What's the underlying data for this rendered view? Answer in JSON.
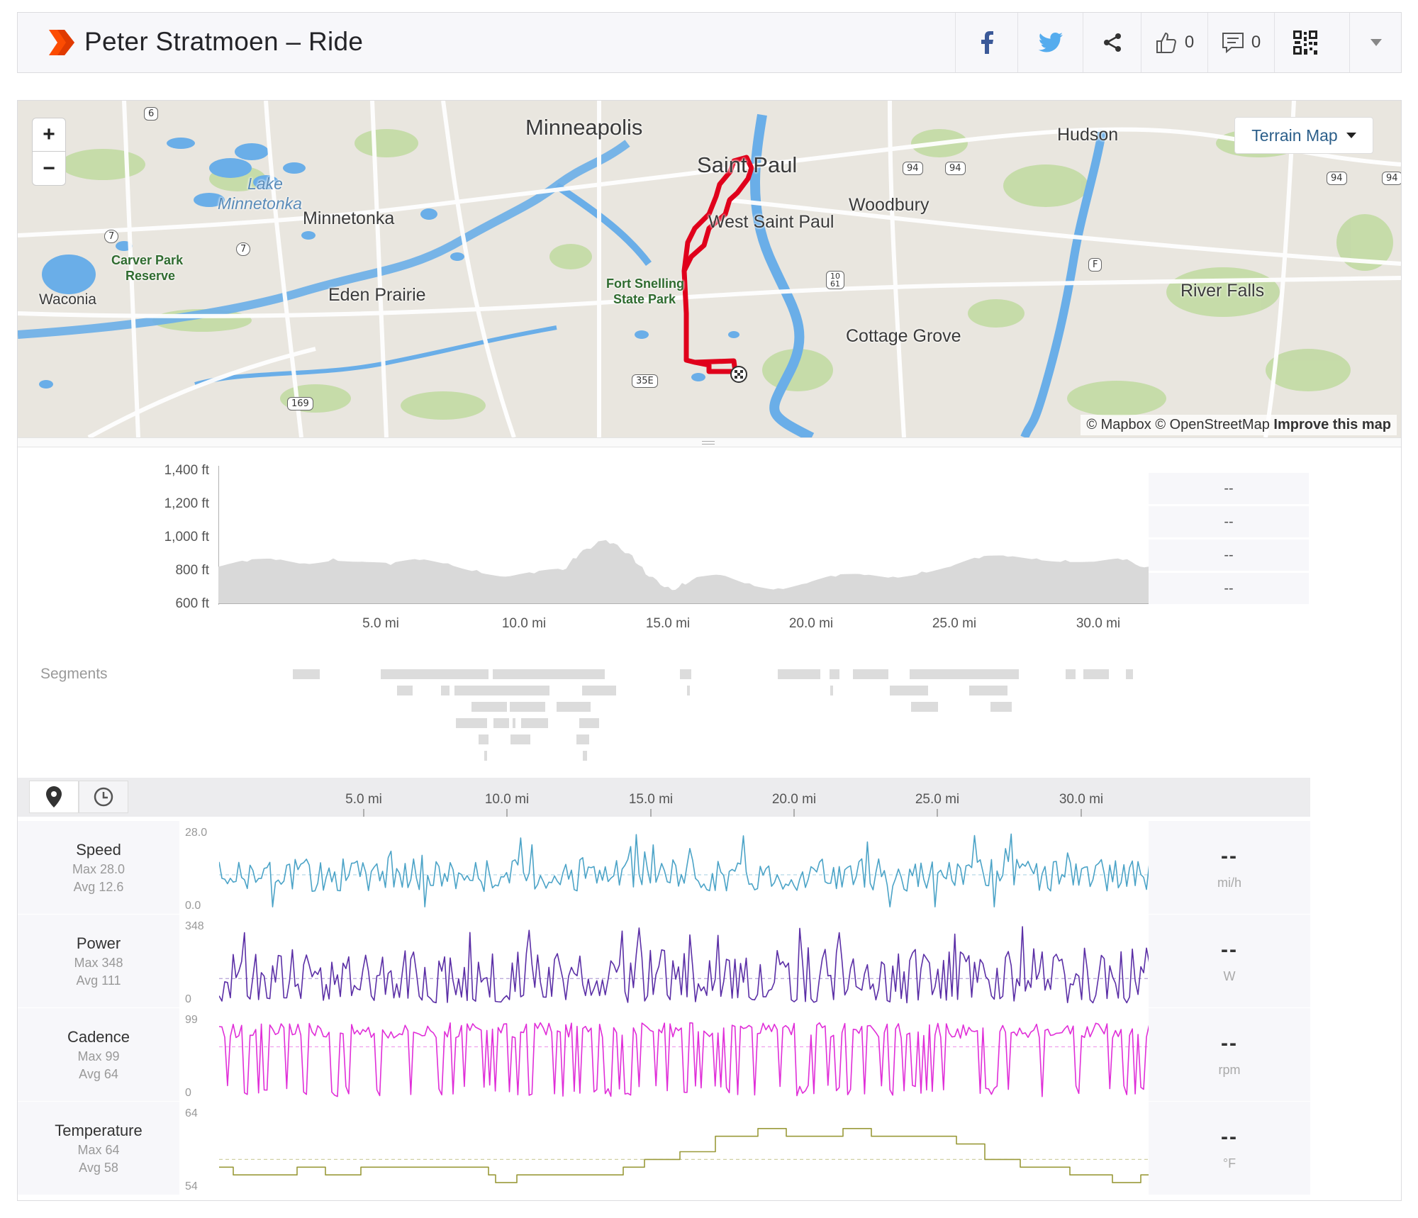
{
  "header": {
    "title": "Peter Stratmoen – Ride",
    "likes": "0",
    "comments": "0",
    "icons": [
      "strava-logo-icon",
      "facebook-icon",
      "twitter-icon",
      "share-icon",
      "thumbs-up-icon",
      "comment-icon",
      "qr-code-icon",
      "chevron-down-icon"
    ]
  },
  "map": {
    "zoom_in": "+",
    "zoom_out": "−",
    "type_selector": "Terrain Map",
    "attribution_a": "© Mapbox © OpenStreetMap",
    "attribution_b": "Improve this map",
    "labels": {
      "minneapolis": "Minneapolis",
      "saint_paul": "Saint Paul",
      "hudson": "Hudson",
      "woodbury": "Woodbury",
      "west_saint_paul": "West Saint Paul",
      "minnetonka": "Minnetonka",
      "lake_minnetonka_1": "Lake",
      "lake_minnetonka_2": "Minnetonka",
      "carver_park_1": "Carver Park",
      "carver_park_2": "Reserve",
      "waconia": "Waconia",
      "eden_prairie": "Eden Prairie",
      "fort_snelling_1": "Fort Snelling",
      "fort_snelling_2": "State Park",
      "cottage_grove": "Cottage Grove",
      "river_falls": "River Falls"
    },
    "shields": {
      "s6": "6",
      "s7a": "7",
      "s7b": "7",
      "s94a": "94",
      "s94b": "94",
      "s94c": "94",
      "s94d": "94",
      "sF": "F",
      "s1061": "10\n61",
      "s35e": "35E",
      "s169": "169"
    },
    "route_color": "#e0001b"
  },
  "elevation": {
    "y_ticks": [
      "1,400 ft",
      "1,200 ft",
      "1,000 ft",
      "800 ft",
      "600 ft"
    ],
    "x_ticks": [
      "5.0 mi",
      "10.0 mi",
      "15.0 mi",
      "20.0 mi",
      "25.0 mi",
      "30.0 mi"
    ],
    "side_stats": [
      "--",
      "--",
      "--",
      "--"
    ],
    "fill_color": "#d9d9d9",
    "series_mi": [
      0,
      1,
      2,
      3,
      4,
      5,
      6,
      7,
      8,
      9,
      10,
      11,
      12,
      12.7,
      13.5,
      14.3,
      15,
      15.8,
      16.5,
      17.5,
      18.5,
      19.5,
      20.5,
      21.5,
      22.5,
      23.5,
      24.5,
      25.5,
      26.5,
      27.5,
      28.5,
      29.5,
      30.5,
      31.5,
      32.4
    ],
    "series_ft": [
      820,
      850,
      860,
      840,
      870,
      850,
      830,
      860,
      840,
      800,
      760,
      780,
      800,
      920,
      980,
      900,
      760,
      680,
      740,
      770,
      720,
      690,
      720,
      760,
      770,
      760,
      790,
      820,
      870,
      880,
      870,
      860,
      850,
      860,
      820
    ]
  },
  "segments": {
    "label": "Segments"
  },
  "analysis": {
    "x_ticks": [
      "5.0 mi",
      "10.0 mi",
      "15.0 mi",
      "20.0 mi",
      "25.0 mi",
      "30.0 mi"
    ],
    "tools": [
      "map-marker-icon",
      "clock-icon"
    ],
    "rows": [
      {
        "name": "Speed",
        "max": "Max 28.0",
        "avg": "Avg 12.6",
        "ymax": "28.0",
        "ymin": "0.0",
        "dash": "--",
        "unit": "mi/h",
        "color": "#4ba3c7",
        "max_value": 28.0,
        "avg_value": 12.6,
        "min_value": 0
      },
      {
        "name": "Power",
        "max": "Max 348",
        "avg": "Avg 111",
        "ymax": "348",
        "ymin": "0",
        "dash": "--",
        "unit": "W",
        "color": "#5b2fa6",
        "max_value": 348,
        "avg_value": 111,
        "min_value": 0
      },
      {
        "name": "Cadence",
        "max": "Max 99",
        "avg": "Avg 64",
        "ymax": "99",
        "ymin": "0",
        "dash": "--",
        "unit": "rpm",
        "color": "#e02ed8",
        "max_value": 99,
        "avg_value": 64,
        "min_value": 0
      },
      {
        "name": "Temperature",
        "max": "Max 64",
        "avg": "Avg 58",
        "ymax": "64",
        "ymin": "54",
        "dash": "--",
        "unit": "°F",
        "color": "#9a9a3a",
        "max_value": 64,
        "avg_value": 58,
        "min_value": 54
      }
    ]
  }
}
